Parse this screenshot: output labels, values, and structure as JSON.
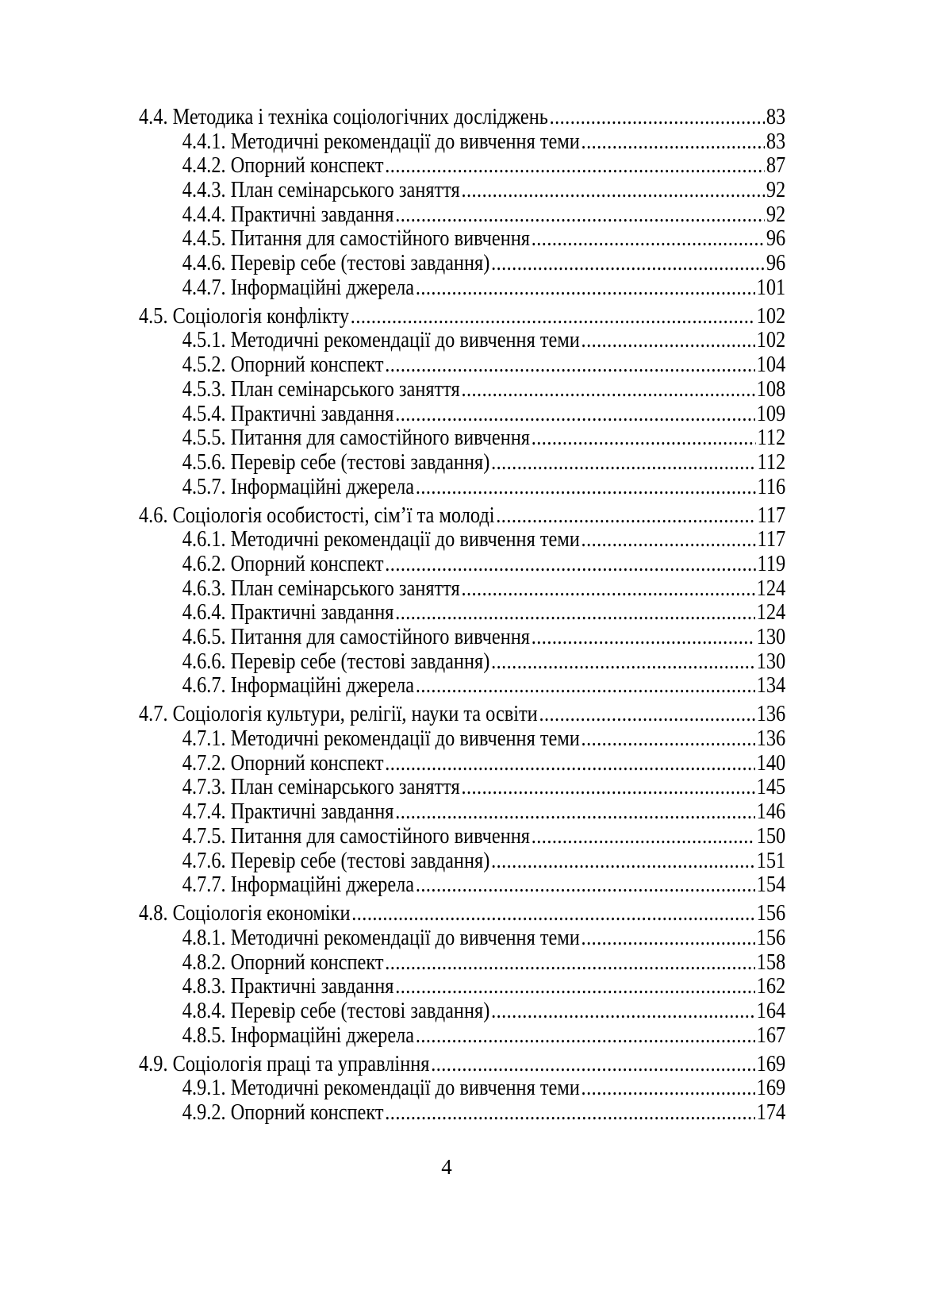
{
  "toc": [
    {
      "level": 1,
      "title": "4.4. Методика і техніка соціологічних досліджень",
      "page": "83"
    },
    {
      "level": 2,
      "title": "4.4.1. Методичні рекомендації до вивчення теми",
      "page": "83"
    },
    {
      "level": 2,
      "title": "4.4.2. Опорний конспект",
      "page": "87"
    },
    {
      "level": 2,
      "title": "4.4.3. План семінарського заняття",
      "page": "92"
    },
    {
      "level": 2,
      "title": "4.4.4. Практичні завдання",
      "page": "92"
    },
    {
      "level": 2,
      "title": "4.4.5. Питання для самостійного вивчення",
      "page": "96"
    },
    {
      "level": 2,
      "title": "4.4.6. Перевір себе (тестові завдання)",
      "page": "96"
    },
    {
      "level": 2,
      "title": "4.4.7. Інформаційні джерела ",
      "page": "101"
    },
    {
      "level": 1,
      "title": "4.5. Соціологія конфлікту",
      "page": "102"
    },
    {
      "level": 2,
      "title": "4.5.1. Методичні рекомендації до вивчення теми",
      "page": "102"
    },
    {
      "level": 2,
      "title": "4.5.2. Опорний конспект",
      "page": "104"
    },
    {
      "level": 2,
      "title": "4.5.3. План семінарського заняття",
      "page": "108"
    },
    {
      "level": 2,
      "title": "4.5.4. Практичні завдання",
      "page": "109"
    },
    {
      "level": 2,
      "title": "4.5.5. Питання для самостійного вивчення",
      "page": "112"
    },
    {
      "level": 2,
      "title": "4.5.6. Перевір себе (тестові завдання)",
      "page": "112"
    },
    {
      "level": 2,
      "title": "4.5.7. Інформаційні джерела ",
      "page": "116"
    },
    {
      "level": 1,
      "title": "4.6. Соціологія особистості, сім’ї та молоді ",
      "page": "117"
    },
    {
      "level": 2,
      "title": "4.6.1. Методичні рекомендації до вивчення теми",
      "page": "117"
    },
    {
      "level": 2,
      "title": "4.6.2. Опорний конспект",
      "page": "119"
    },
    {
      "level": 2,
      "title": "4.6.3. План семінарського заняття",
      "page": "124"
    },
    {
      "level": 2,
      "title": "4.6.4. Практичні завдання",
      "page": "124"
    },
    {
      "level": 2,
      "title": "4.6.5. Питання для самостійного вивчення",
      "page": "130"
    },
    {
      "level": 2,
      "title": "4.6.6. Перевір себе (тестові завдання)",
      "page": "130"
    },
    {
      "level": 2,
      "title": "4.6.7. Інформаційні джерела ",
      "page": "134"
    },
    {
      "level": 1,
      "title": "4.7. Соціологія культури, релігії, науки та освіти",
      "page": "136"
    },
    {
      "level": 2,
      "title": "4.7.1. Методичні рекомендації до вивчення теми",
      "page": "136"
    },
    {
      "level": 2,
      "title": "4.7.2. Опорний конспект",
      "page": "140"
    },
    {
      "level": 2,
      "title": "4.7.3. План семінарського заняття",
      "page": "145"
    },
    {
      "level": 2,
      "title": "4.7.4. Практичні завдання",
      "page": "146"
    },
    {
      "level": 2,
      "title": "4.7.5. Питання для самостійного вивчення",
      "page": "150"
    },
    {
      "level": 2,
      "title": "4.7.6. Перевір себе (тестові завдання)",
      "page": "151"
    },
    {
      "level": 2,
      "title": "4.7.7. Інформаційні джерела ",
      "page": "154"
    },
    {
      "level": 1,
      "title": "4.8. Соціологія економіки",
      "page": "156"
    },
    {
      "level": 2,
      "title": "4.8.1. Методичні рекомендації до вивчення теми",
      "page": "156"
    },
    {
      "level": 2,
      "title": "4.8.2. Опорний конспект",
      "page": "158"
    },
    {
      "level": 2,
      "title": "4.8.3. Практичні завдання",
      "page": "162"
    },
    {
      "level": 2,
      "title": "4.8.4. Перевір себе (тестові завдання)",
      "page": "164"
    },
    {
      "level": 2,
      "title": "4.8.5. Інформаційні джерела ",
      "page": "167"
    },
    {
      "level": 1,
      "title": "4.9. Соціологія праці та управління",
      "page": "169"
    },
    {
      "level": 2,
      "title": "4.9.1. Методичні рекомендації до вивчення теми",
      "page": "169"
    },
    {
      "level": 2,
      "title": "4.9.2. Опорний конспект",
      "page": "174"
    }
  ],
  "page_number": "4"
}
